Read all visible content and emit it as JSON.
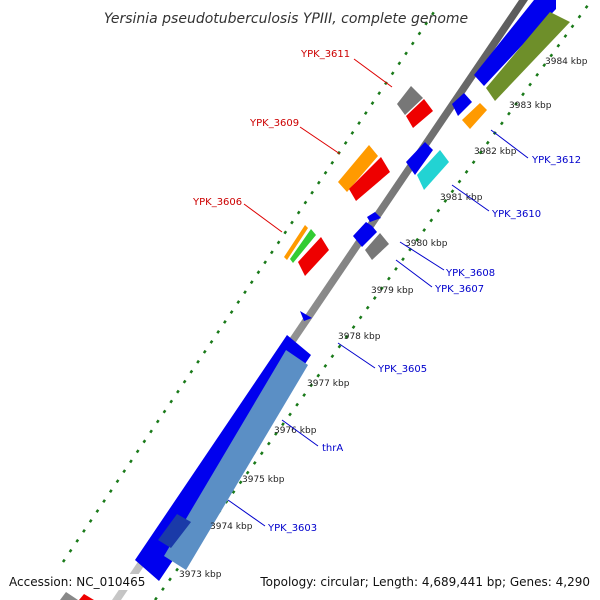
{
  "title": "Yersinia pseudotuberculosis YPIII, complete genome",
  "footer": {
    "accession": "Accession: NC_010465",
    "topology": "Topology: circular; Length: 4,689,441 bp; Genes: 4,290"
  },
  "ticks": [
    "3973 kbp",
    "3974 kbp",
    "3975 kbp",
    "3976 kbp",
    "3977 kbp",
    "3978 kbp",
    "3979 kbp",
    "3980 kbp",
    "3981 kbp",
    "3982 kbp",
    "3983 kbp",
    "3984 kbp"
  ],
  "genes_top": [
    "YPK_3606",
    "YPK_3609",
    "YPK_3611"
  ],
  "genes_bottom": [
    "YPK_3603",
    "thrA",
    "YPK_3605",
    "YPK_3607",
    "YPK_3608",
    "YPK_3610",
    "YPK_3612"
  ],
  "colors": {
    "blue": "#0000ee",
    "steel": "#5b8fc5",
    "gray": "#777777",
    "red": "#ee0000",
    "orange": "#ff9a00",
    "green": "#33cc33",
    "cyan": "#22d3d3",
    "olive": "#6e8f2a",
    "dash": "#1a7a1a",
    "top_label": "#cc0000",
    "bottom_label": "#0000cc"
  }
}
